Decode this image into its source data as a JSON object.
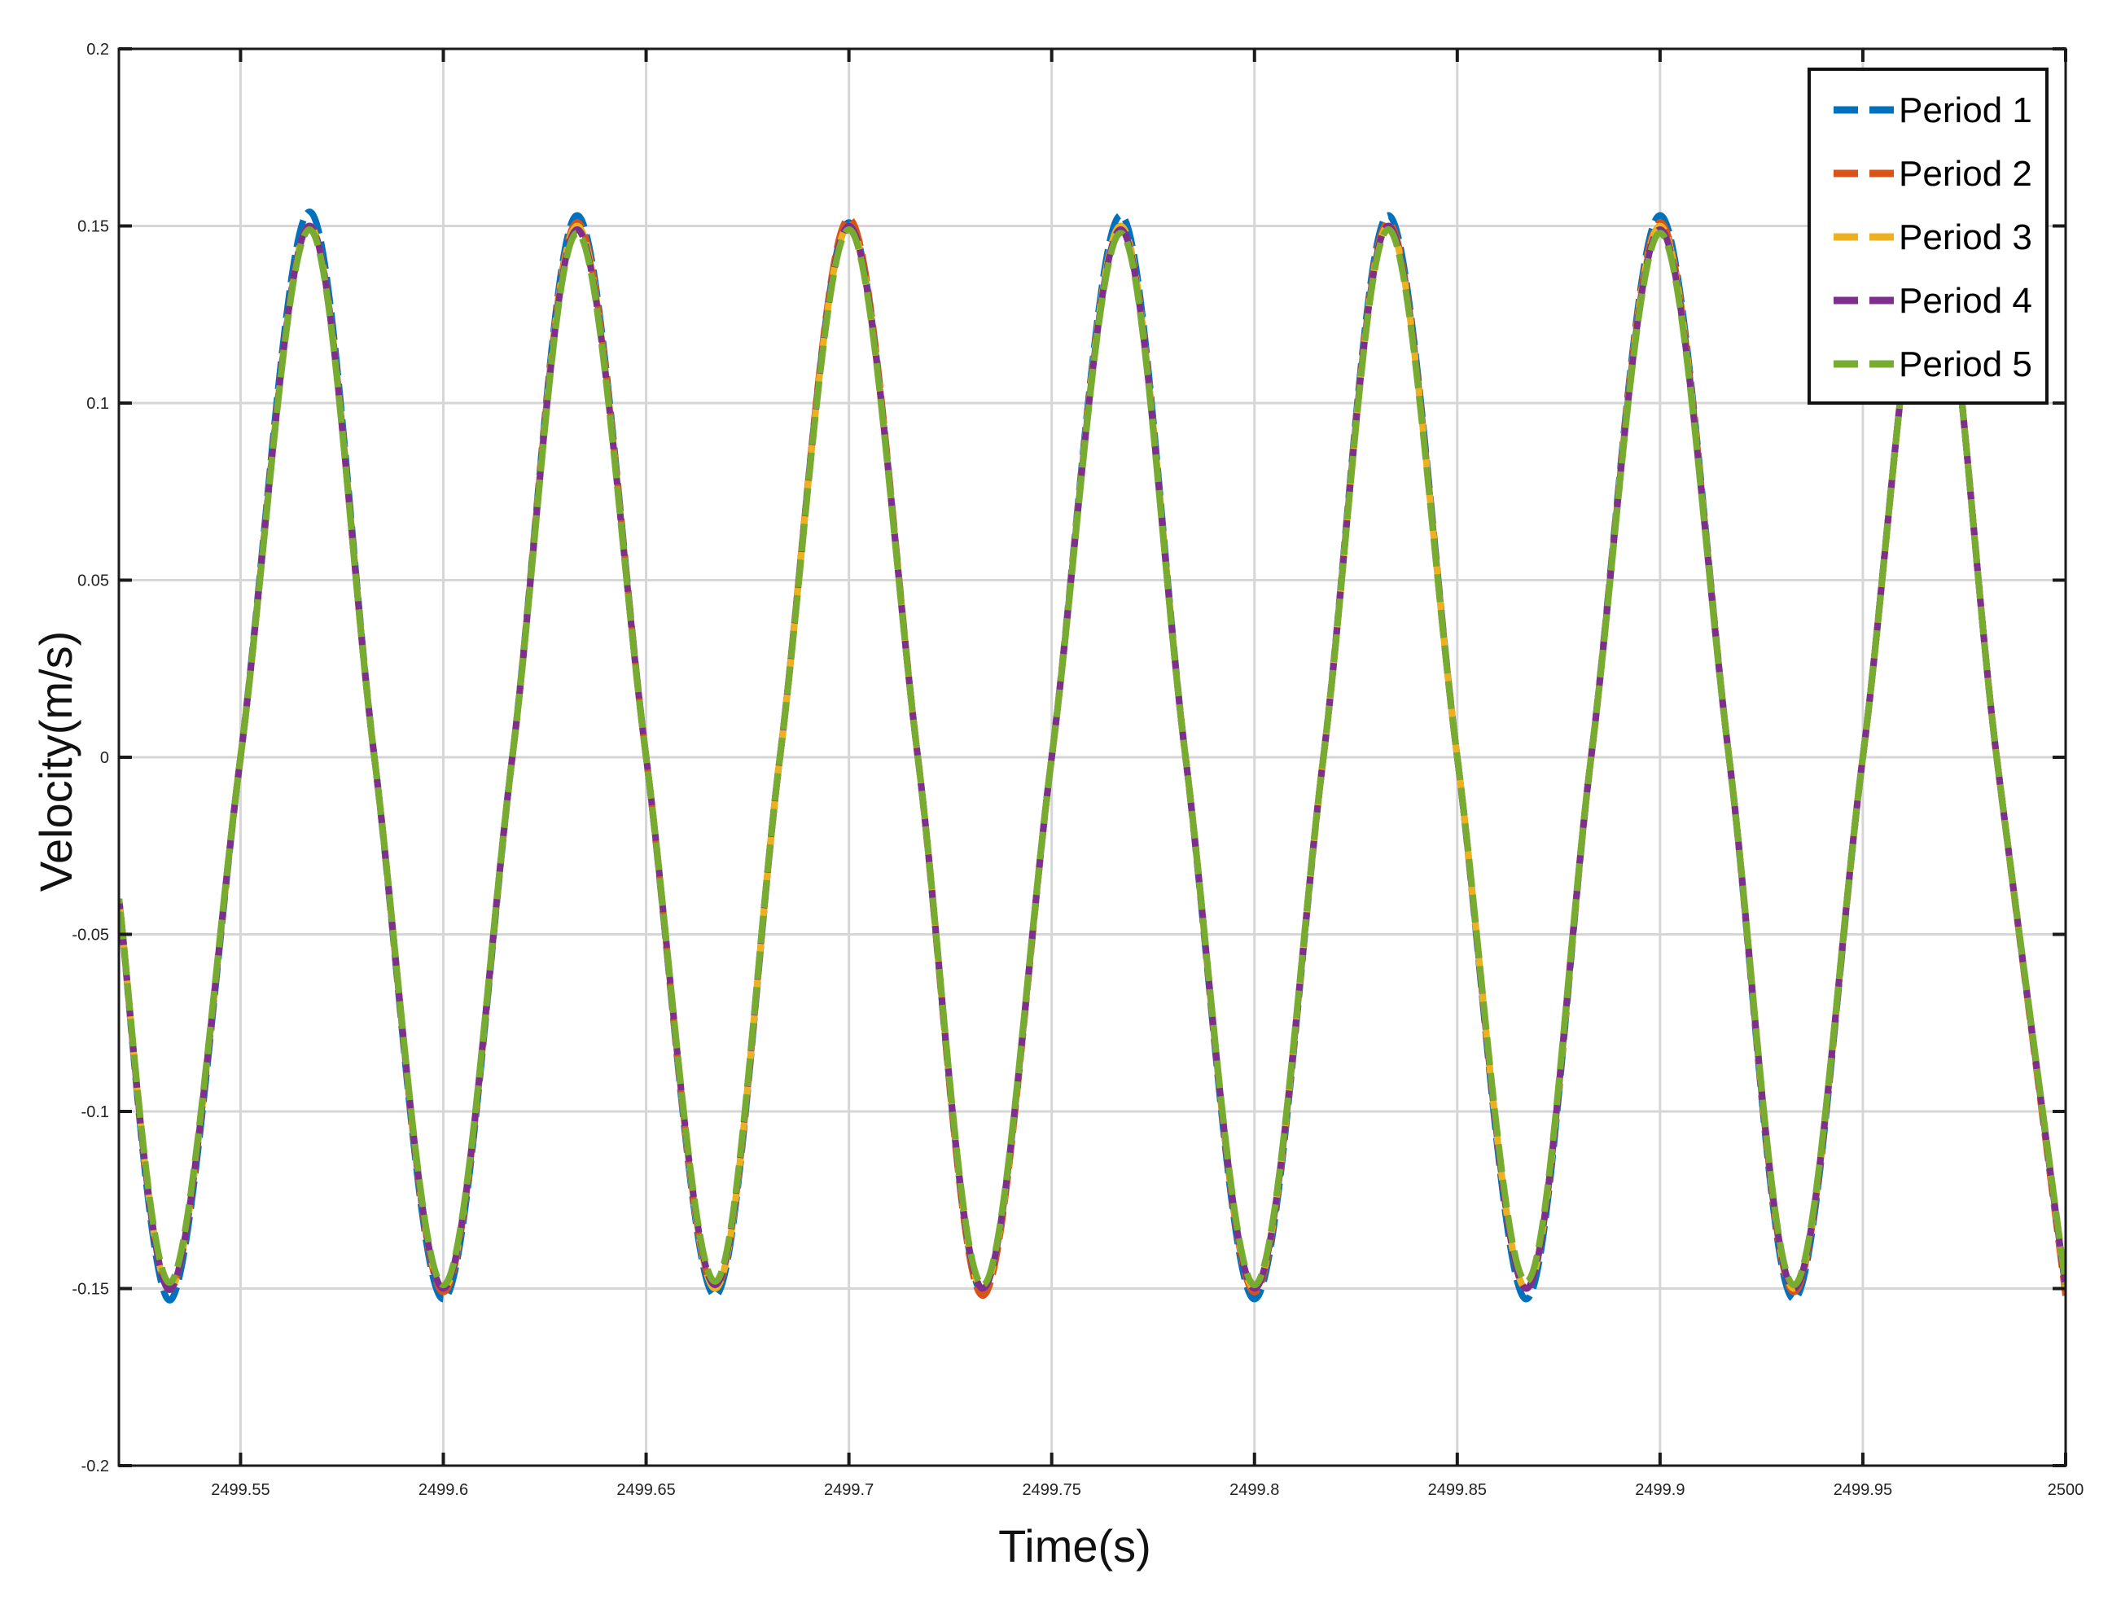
{
  "chart_data": {
    "type": "line",
    "xlabel": "Time(s)",
    "ylabel": "Velocity(m/s)",
    "xlim": [
      2499.52,
      2500
    ],
    "ylim": [
      -0.2,
      0.2
    ],
    "x_ticks": [
      2499.55,
      2499.6,
      2499.65,
      2499.7,
      2499.75,
      2499.8,
      2499.85,
      2499.9,
      2499.95,
      2500
    ],
    "x_tick_labels": [
      "2499.55",
      "2499.6",
      "2499.65",
      "2499.7",
      "2499.75",
      "2499.8",
      "2499.85",
      "2499.9",
      "2499.95",
      "2500"
    ],
    "y_ticks": [
      -0.2,
      -0.15,
      -0.1,
      -0.05,
      0,
      0.05,
      0.1,
      0.15,
      0.2
    ],
    "y_tick_labels": [
      "-0.2",
      "-0.15",
      "-0.1",
      "-0.05",
      "0",
      "0.05",
      "0.1",
      "0.15",
      "0.2"
    ],
    "grid": true,
    "legend_position": "top-right",
    "line_style": "dashed",
    "series": [
      {
        "name": "Period 1",
        "color": "#0072BD",
        "x": [
          2499.52,
          2499.533,
          2499.55,
          2499.567,
          2499.583,
          2499.6,
          2499.617,
          2499.633,
          2499.65,
          2499.667,
          2499.683,
          2499.7,
          2499.717,
          2499.733,
          2499.75,
          2499.767,
          2499.783,
          2499.8,
          2499.817,
          2499.833,
          2499.85,
          2499.867,
          2499.883,
          2499.9,
          2499.917,
          2499.933,
          2499.95,
          2499.967,
          2499.983,
          2500.0
        ],
        "y": [
          -0.04,
          -0.153,
          0.0,
          0.154,
          0.0,
          -0.153,
          0.0,
          0.153,
          0.0,
          -0.152,
          0.0,
          0.151,
          0.0,
          -0.151,
          0.0,
          0.153,
          0.0,
          -0.153,
          0.0,
          0.153,
          0.0,
          -0.153,
          0.0,
          0.153,
          0.0,
          -0.153,
          0.0,
          0.15,
          0.0,
          -0.15
        ]
      },
      {
        "name": "Period 2",
        "color": "#D95319",
        "x": [
          2499.52,
          2499.533,
          2499.55,
          2499.567,
          2499.583,
          2499.6,
          2499.617,
          2499.633,
          2499.65,
          2499.667,
          2499.683,
          2499.7,
          2499.717,
          2499.733,
          2499.75,
          2499.767,
          2499.783,
          2499.8,
          2499.817,
          2499.833,
          2499.85,
          2499.867,
          2499.883,
          2499.9,
          2499.917,
          2499.933,
          2499.95,
          2499.967,
          2499.983,
          2500.0
        ],
        "y": [
          -0.04,
          -0.15,
          0.0,
          0.15,
          0.0,
          -0.151,
          0.0,
          0.151,
          0.0,
          -0.15,
          0.0,
          0.152,
          0.0,
          -0.152,
          0.0,
          0.15,
          0.0,
          -0.151,
          0.0,
          0.151,
          0.0,
          -0.15,
          0.0,
          0.151,
          0.0,
          -0.151,
          0.0,
          0.15,
          0.0,
          -0.152
        ]
      },
      {
        "name": "Period 3",
        "color": "#EDB120",
        "x": [
          2499.52,
          2499.533,
          2499.55,
          2499.567,
          2499.583,
          2499.6,
          2499.617,
          2499.633,
          2499.65,
          2499.667,
          2499.683,
          2499.7,
          2499.717,
          2499.733,
          2499.75,
          2499.767,
          2499.783,
          2499.8,
          2499.817,
          2499.833,
          2499.85,
          2499.867,
          2499.883,
          2499.9,
          2499.917,
          2499.933,
          2499.95,
          2499.967,
          2499.983,
          2500.0
        ],
        "y": [
          -0.04,
          -0.15,
          0.0,
          0.15,
          0.0,
          -0.15,
          0.0,
          0.15,
          0.0,
          -0.15,
          0.0,
          0.15,
          0.0,
          -0.15,
          0.0,
          0.15,
          0.0,
          -0.15,
          0.0,
          0.15,
          0.0,
          -0.15,
          0.0,
          0.15,
          0.0,
          -0.15,
          0.0,
          0.15,
          0.0,
          -0.15
        ]
      },
      {
        "name": "Period 4",
        "color": "#7E2F8E",
        "x": [
          2499.52,
          2499.533,
          2499.55,
          2499.567,
          2499.583,
          2499.6,
          2499.617,
          2499.633,
          2499.65,
          2499.667,
          2499.683,
          2499.7,
          2499.717,
          2499.733,
          2499.75,
          2499.767,
          2499.783,
          2499.8,
          2499.817,
          2499.833,
          2499.85,
          2499.867,
          2499.883,
          2499.9,
          2499.917,
          2499.933,
          2499.95,
          2499.967,
          2499.983,
          2500.0
        ],
        "y": [
          -0.04,
          -0.15,
          0.0,
          0.15,
          0.0,
          -0.15,
          0.0,
          0.149,
          0.0,
          -0.149,
          0.0,
          0.15,
          0.0,
          -0.15,
          0.0,
          0.149,
          0.0,
          -0.15,
          0.0,
          0.15,
          0.0,
          -0.15,
          0.0,
          0.149,
          0.0,
          -0.15,
          0.0,
          0.15,
          0.0,
          -0.15
        ]
      },
      {
        "name": "Period 5",
        "color": "#77AC30",
        "x": [
          2499.52,
          2499.533,
          2499.55,
          2499.567,
          2499.583,
          2499.6,
          2499.617,
          2499.633,
          2499.65,
          2499.667,
          2499.683,
          2499.7,
          2499.717,
          2499.733,
          2499.75,
          2499.767,
          2499.783,
          2499.8,
          2499.817,
          2499.833,
          2499.85,
          2499.867,
          2499.883,
          2499.9,
          2499.917,
          2499.933,
          2499.95,
          2499.967,
          2499.983,
          2500.0
        ],
        "y": [
          -0.04,
          -0.148,
          0.0,
          0.149,
          0.0,
          -0.149,
          0.0,
          0.148,
          0.0,
          -0.148,
          0.0,
          0.149,
          0.0,
          -0.149,
          0.0,
          0.148,
          0.0,
          -0.149,
          0.0,
          0.149,
          0.0,
          -0.148,
          0.0,
          0.148,
          0.0,
          -0.149,
          0.0,
          0.15,
          0.0,
          -0.149
        ]
      }
    ]
  }
}
